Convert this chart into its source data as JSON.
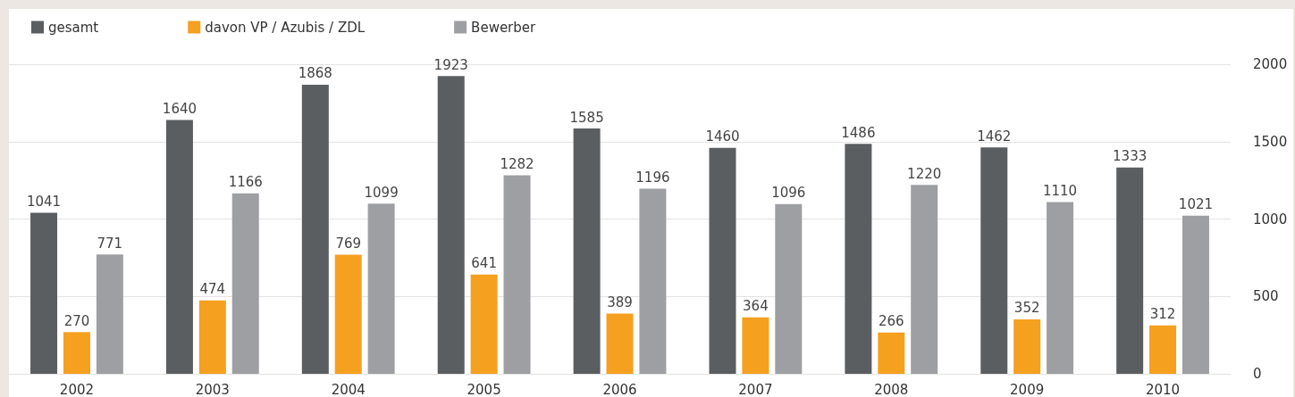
{
  "chart_data": {
    "type": "bar",
    "categories": [
      "2002",
      "2003",
      "2004",
      "2005",
      "2006",
      "2007",
      "2008",
      "2009",
      "2010"
    ],
    "series": [
      {
        "name": "gesamt",
        "color": "#5b5e61",
        "values": [
          1041,
          1640,
          1868,
          1923,
          1585,
          1460,
          1486,
          1462,
          1333
        ]
      },
      {
        "name": "davon VP / Azubis / ZDL",
        "color": "#f5a01f",
        "values": [
          270,
          474,
          769,
          641,
          389,
          364,
          266,
          352,
          312
        ]
      },
      {
        "name": "Bewerber",
        "color": "#9d9fa2",
        "values": [
          771,
          1166,
          1099,
          1282,
          1196,
          1096,
          1220,
          1110,
          1021
        ]
      }
    ],
    "ylim": [
      0,
      2000
    ],
    "yticks": [
      0,
      500,
      1000,
      1500,
      2000
    ],
    "grid": "y",
    "legend": "top left",
    "data_labels": true
  }
}
